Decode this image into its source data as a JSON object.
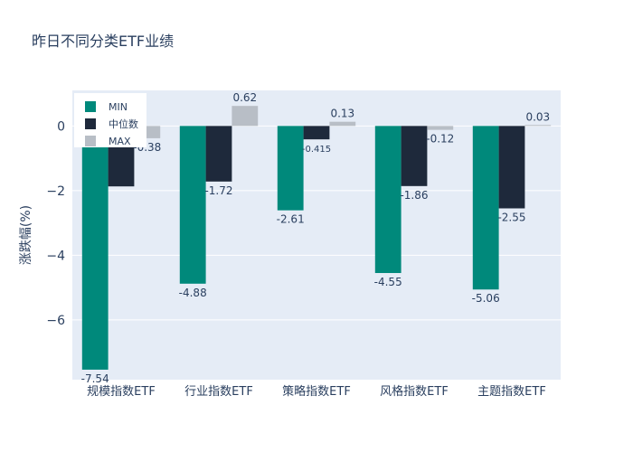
{
  "chart_data": {
    "type": "bar",
    "title": "昨日不同分类ETF业绩",
    "xlabel": "",
    "ylabel": "涨跌幅(%)",
    "ylim": [
      -7.85,
      1.1
    ],
    "yticks": [
      0,
      -2,
      -4,
      -6
    ],
    "grid": true,
    "legend_position": "top-left",
    "categories": [
      "规模指数ETF",
      "行业指数ETF",
      "策略指数ETF",
      "风格指数ETF",
      "主题指数ETF"
    ],
    "series": [
      {
        "name": "MIN",
        "color": "#00897b",
        "values": [
          -7.54,
          -4.88,
          -2.61,
          -4.55,
          -5.06
        ],
        "labels": [
          "-7.54",
          "-4.88",
          "-2.61",
          "-4.55",
          "-5.06"
        ]
      },
      {
        "name": "中位数",
        "color": "#1e293b",
        "values": [
          -1.87,
          -1.72,
          -0.415,
          -1.86,
          -2.55
        ],
        "labels": [
          "",
          "-1.72",
          "-0.415",
          "-1.86",
          "-2.55"
        ]
      },
      {
        "name": "MAX",
        "color": "#b8bec6",
        "values": [
          -0.38,
          0.62,
          0.13,
          -0.12,
          0.03
        ],
        "labels": [
          "-0.38",
          "0.62",
          "0.13",
          "-0.12",
          "0.03"
        ]
      }
    ]
  }
}
